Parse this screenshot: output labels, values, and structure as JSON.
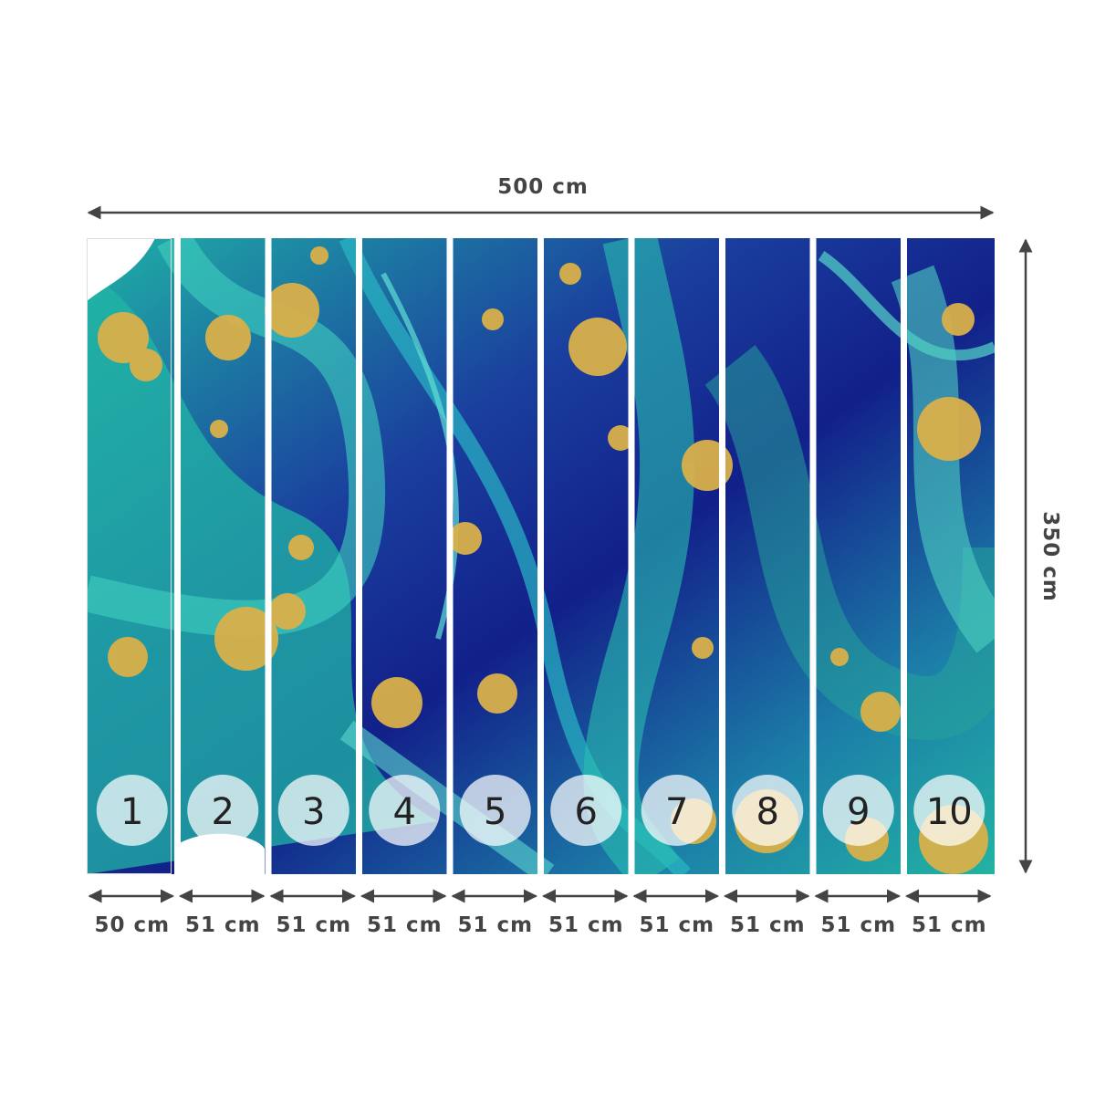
{
  "dimensions": {
    "width": "500 cm",
    "height": "350 cm"
  },
  "panels": [
    {
      "number": "1",
      "width": "50 cm"
    },
    {
      "number": "2",
      "width": "51 cm"
    },
    {
      "number": "3",
      "width": "51 cm"
    },
    {
      "number": "4",
      "width": "51 cm"
    },
    {
      "number": "5",
      "width": "51 cm"
    },
    {
      "number": "6",
      "width": "51 cm"
    },
    {
      "number": "7",
      "width": "51 cm"
    },
    {
      "number": "8",
      "width": "51 cm"
    },
    {
      "number": "9",
      "width": "51 cm"
    },
    {
      "number": "10",
      "width": "51 cm"
    }
  ]
}
